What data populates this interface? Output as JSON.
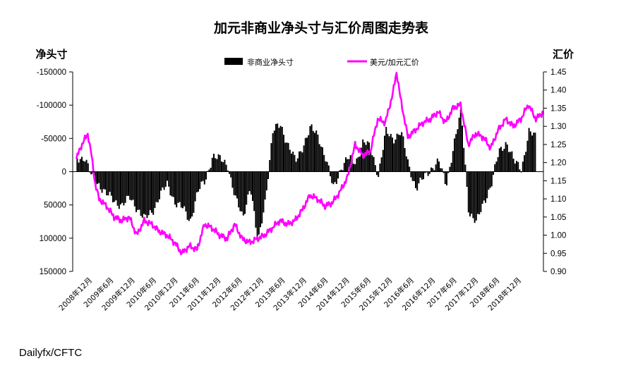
{
  "chart_data": {
    "type": "bar-line-dual-axis",
    "title": "加元非商业净头寸与汇价周图走势表",
    "left_axis": {
      "label": "净头寸",
      "range": [
        -150000,
        150000
      ],
      "inverted": true,
      "ticks": [
        -150000,
        -100000,
        -50000,
        0,
        50000,
        100000,
        150000
      ],
      "tick_labels": [
        "-150000",
        "-100000",
        "-50000",
        "0",
        "50000",
        "100000",
        "150000"
      ]
    },
    "right_axis": {
      "label": "汇价",
      "range": [
        0.9,
        1.45
      ],
      "ticks": [
        1.45,
        1.4,
        1.35,
        1.3,
        1.25,
        1.2,
        1.15,
        1.1,
        1.05,
        1.0,
        0.95,
        0.9
      ],
      "tick_labels": [
        "1.45",
        "1.40",
        "1.35",
        "1.30",
        "1.25",
        "1.20",
        "1.15",
        "1.10",
        "1.05",
        "1.00",
        "0.95",
        "0.90"
      ]
    },
    "x_tick_labels": [
      "2008年12月",
      "2009年6月",
      "2009年12月",
      "2010年6月",
      "2010年12月",
      "2011年6月",
      "2011年12月",
      "2012年6月",
      "2012年12月",
      "2013年6月",
      "2013年12月",
      "2014年6月",
      "2014年12月",
      "2015年6月",
      "2015年12月",
      "2016年6月",
      "2016年12月",
      "2017年6月",
      "2017年12月",
      "2018年6月",
      "2018年12月"
    ],
    "legend_position": "top-center",
    "series": [
      {
        "name": "非商业净头寸",
        "kind": "bar",
        "color": "#000000",
        "axis": "left",
        "points": [
          [
            "2008-12",
            -20000
          ],
          [
            "2009-02",
            -22000
          ],
          [
            "2009-04",
            10000
          ],
          [
            "2009-06",
            20000
          ],
          [
            "2009-08",
            35000
          ],
          [
            "2009-10",
            45000
          ],
          [
            "2009-12",
            50000
          ],
          [
            "2010-02",
            40000
          ],
          [
            "2010-04",
            55000
          ],
          [
            "2010-06",
            72000
          ],
          [
            "2010-08",
            60000
          ],
          [
            "2010-10",
            35000
          ],
          [
            "2010-12",
            20000
          ],
          [
            "2011-02",
            45000
          ],
          [
            "2011-04",
            55000
          ],
          [
            "2011-06",
            75000
          ],
          [
            "2011-08",
            30000
          ],
          [
            "2011-10",
            15000
          ],
          [
            "2011-12",
            -25000
          ],
          [
            "2012-02",
            -18000
          ],
          [
            "2012-04",
            -10000
          ],
          [
            "2012-06",
            40000
          ],
          [
            "2012-08",
            70000
          ],
          [
            "2012-10",
            20000
          ],
          [
            "2012-12",
            110000
          ],
          [
            "2013-02",
            40000
          ],
          [
            "2013-04",
            -60000
          ],
          [
            "2013-06",
            -72000
          ],
          [
            "2013-08",
            -40000
          ],
          [
            "2013-10",
            -15000
          ],
          [
            "2013-12",
            -40000
          ],
          [
            "2014-02",
            -65000
          ],
          [
            "2014-04",
            -55000
          ],
          [
            "2014-06",
            -20000
          ],
          [
            "2014-08",
            25000
          ],
          [
            "2014-10",
            -5000
          ],
          [
            "2014-12",
            -20000
          ],
          [
            "2015-02",
            -15000
          ],
          [
            "2015-04",
            -45000
          ],
          [
            "2015-06",
            -35000
          ],
          [
            "2015-08",
            5000
          ],
          [
            "2015-10",
            -60000
          ],
          [
            "2015-12",
            -50000
          ],
          [
            "2016-02",
            -60000
          ],
          [
            "2016-04",
            -10000
          ],
          [
            "2016-06",
            25000
          ],
          [
            "2016-08",
            10000
          ],
          [
            "2016-10",
            -5000
          ],
          [
            "2016-12",
            -15000
          ],
          [
            "2017-02",
            20000
          ],
          [
            "2017-04",
            -40000
          ],
          [
            "2017-06",
            -90000
          ],
          [
            "2017-08",
            60000
          ],
          [
            "2017-10",
            78000
          ],
          [
            "2017-12",
            45000
          ],
          [
            "2018-02",
            20000
          ],
          [
            "2018-04",
            -30000
          ],
          [
            "2018-06",
            -45000
          ],
          [
            "2018-08",
            -15000
          ],
          [
            "2018-10",
            -5000
          ],
          [
            "2018-12",
            -60000
          ],
          [
            "2019-02",
            -50000
          ]
        ]
      },
      {
        "name": "美元/加元汇价",
        "kind": "line",
        "color": "#ff00ff",
        "axis": "right",
        "points": [
          [
            "2008-12",
            1.21
          ],
          [
            "2009-01",
            1.24
          ],
          [
            "2009-02",
            1.26
          ],
          [
            "2009-03",
            1.28
          ],
          [
            "2009-04",
            1.22
          ],
          [
            "2009-05",
            1.14
          ],
          [
            "2009-06",
            1.1
          ],
          [
            "2009-07",
            1.09
          ],
          [
            "2009-08",
            1.08
          ],
          [
            "2009-10",
            1.05
          ],
          [
            "2009-12",
            1.04
          ],
          [
            "2010-02",
            1.05
          ],
          [
            "2010-04",
            1.0
          ],
          [
            "2010-06",
            1.04
          ],
          [
            "2010-08",
            1.03
          ],
          [
            "2010-10",
            1.01
          ],
          [
            "2010-12",
            1.0
          ],
          [
            "2011-02",
            0.98
          ],
          [
            "2011-04",
            0.95
          ],
          [
            "2011-06",
            0.97
          ],
          [
            "2011-08",
            0.96
          ],
          [
            "2011-10",
            1.03
          ],
          [
            "2011-12",
            1.02
          ],
          [
            "2012-02",
            1.0
          ],
          [
            "2012-04",
            0.99
          ],
          [
            "2012-06",
            1.03
          ],
          [
            "2012-08",
            0.99
          ],
          [
            "2012-10",
            0.98
          ],
          [
            "2012-12",
            0.99
          ],
          [
            "2013-02",
            1.0
          ],
          [
            "2013-04",
            1.02
          ],
          [
            "2013-06",
            1.04
          ],
          [
            "2013-08",
            1.03
          ],
          [
            "2013-10",
            1.04
          ],
          [
            "2013-12",
            1.07
          ],
          [
            "2014-02",
            1.11
          ],
          [
            "2014-04",
            1.1
          ],
          [
            "2014-06",
            1.08
          ],
          [
            "2014-08",
            1.09
          ],
          [
            "2014-10",
            1.12
          ],
          [
            "2014-12",
            1.16
          ],
          [
            "2015-02",
            1.25
          ],
          [
            "2015-04",
            1.22
          ],
          [
            "2015-06",
            1.23
          ],
          [
            "2015-08",
            1.32
          ],
          [
            "2015-10",
            1.31
          ],
          [
            "2015-12",
            1.39
          ],
          [
            "2016-01",
            1.45
          ],
          [
            "2016-02",
            1.38
          ],
          [
            "2016-04",
            1.27
          ],
          [
            "2016-06",
            1.29
          ],
          [
            "2016-08",
            1.31
          ],
          [
            "2016-10",
            1.32
          ],
          [
            "2016-12",
            1.34
          ],
          [
            "2017-02",
            1.31
          ],
          [
            "2017-04",
            1.35
          ],
          [
            "2017-06",
            1.36
          ],
          [
            "2017-08",
            1.25
          ],
          [
            "2017-10",
            1.28
          ],
          [
            "2017-12",
            1.27
          ],
          [
            "2018-02",
            1.24
          ],
          [
            "2018-04",
            1.29
          ],
          [
            "2018-06",
            1.32
          ],
          [
            "2018-08",
            1.3
          ],
          [
            "2018-10",
            1.32
          ],
          [
            "2018-12",
            1.36
          ],
          [
            "2019-02",
            1.32
          ],
          [
            "2019-04",
            1.34
          ]
        ]
      }
    ]
  },
  "source": "Dailyfx/CFTC"
}
